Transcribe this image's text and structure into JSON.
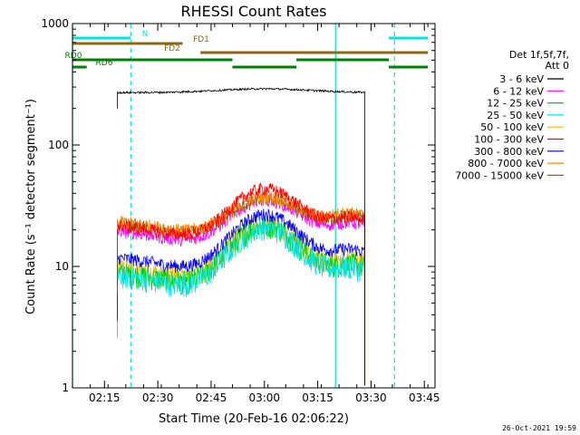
{
  "chart_data": {
    "type": "line",
    "title": "RHESSI Count Rates",
    "xlabel": "Start Time (20-Feb-16 02:06:22)",
    "ylabel": "Count Rate (s⁻¹ detector segment⁻¹)",
    "yscale": "log",
    "ylim": [
      1,
      1000
    ],
    "xlim_minutes_after_0206": [
      0,
      102
    ],
    "x_ticks": [
      "02:15",
      "02:30",
      "02:45",
      "03:00",
      "03:15",
      "03:30",
      "03:45"
    ],
    "x_tick_minutes": [
      9,
      24,
      39,
      54,
      69,
      84,
      99
    ],
    "y_ticks": [
      "1",
      "10",
      "100",
      "1000"
    ],
    "y_tick_values": [
      1,
      10,
      100,
      1000
    ],
    "legend": {
      "placement": "right",
      "header": [
        "Det 1f,5f,7f,",
        "Att 0"
      ]
    },
    "series": [
      {
        "name": "3 - 6 keV",
        "color": "#000000",
        "level": "flat",
        "base": 270,
        "peak": 290
      },
      {
        "name": "6 - 12 keV",
        "color": "#ff00ff",
        "level": "flare",
        "base": 20,
        "peak": 36
      },
      {
        "name": "12 - 25 keV",
        "color": "#00cc00",
        "level": "flare",
        "base": 9,
        "peak": 22
      },
      {
        "name": "25 - 50 keV",
        "color": "#00e5e5",
        "level": "flare",
        "base": 8.5,
        "peak": 21
      },
      {
        "name": "50 - 100 keV",
        "color": "#e5c000",
        "level": "flare",
        "base": 10,
        "peak": 23
      },
      {
        "name": "100 - 300 keV",
        "color": "#ff0000",
        "level": "flare",
        "base": 22,
        "peak": 44
      },
      {
        "name": "300 - 800 keV",
        "color": "#0000ff",
        "level": "flare",
        "base": 12,
        "peak": 27
      },
      {
        "name": "800 - 7000 keV",
        "color": "#ff8800",
        "level": "flare",
        "base": 24,
        "peak": 38
      },
      {
        "name": "7000 - 15000 keV",
        "color": "#8b6914",
        "level": "flare",
        "base": 23,
        "peak": 36
      }
    ],
    "data_start_minute": 12.6,
    "data_end_minute": 82.2,
    "flare_peak_minute": 54,
    "flags": [
      {
        "label": "N",
        "color": "#00e5e5",
        "segments": [
          [
            0,
            16.4
          ],
          [
            89,
            100
          ]
        ]
      },
      {
        "label": "FD1",
        "color": "#8b6914",
        "segments": [
          [
            0,
            31
          ]
        ]
      },
      {
        "label": "FD2",
        "color": "#8b6914",
        "segments": [
          [
            36,
            100
          ]
        ]
      },
      {
        "label": "RD0",
        "color": "#008000",
        "segments": [
          [
            0,
            45
          ],
          [
            63,
            89
          ]
        ]
      },
      {
        "label": "RD6",
        "color": "#008000",
        "segments": [
          [
            0,
            4
          ],
          [
            45,
            63
          ],
          [
            89,
            100
          ]
        ]
      }
    ],
    "vlines": [
      {
        "minute": 0,
        "color": "#00e5e5",
        "style": "solid"
      },
      {
        "minute": 16.4,
        "color": "#00e5e5",
        "style": "dashed"
      },
      {
        "minute": 74,
        "color": "#00e5e5",
        "style": "solid"
      },
      {
        "minute": 90.6,
        "color": "#00e5e5",
        "style": "dashed"
      }
    ]
  },
  "footer": {
    "timestamp": "26-Oct-2021 19:59"
  }
}
